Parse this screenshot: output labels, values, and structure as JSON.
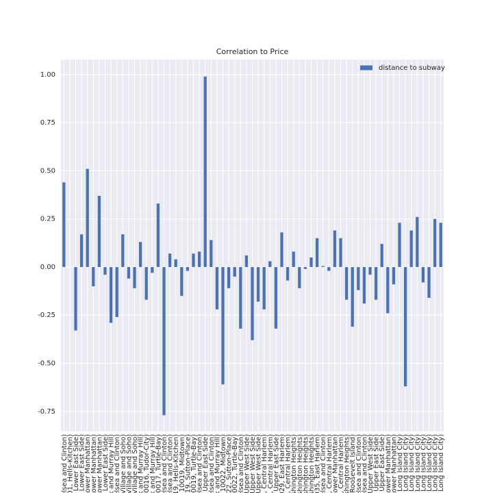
{
  "chart_data": {
    "type": "bar",
    "title": "Correlation to Price",
    "categories": [
      "elsea and Clinton)",
      "001, Hells-Kitchen)",
      "Lower East Side)",
      "Lower East Side)",
      "Lower Manhattan)",
      "Lower Manhattan)",
      "Lower Manhattan)",
      "Lower East Side)",
      "rk and Murray Hill)",
      "elsea and Clinton)",
      "Village and Soho)",
      "Village and Soho)",
      "Village and Soho)",
      "rk and Murray Hill)",
      "10016, Tudor-City)",
      "rk and Murray Hill)",
      "10017, Turtle-Bay)",
      "elsea and Clinton)",
      "elsea and Clinton)",
      "019, Hells-Kitchen)",
      "10019, Midtown)",
      "019, Sutton-Place)",
      "10019, Turtle-Bay)",
      "elsea and Clinton)",
      "Upper East Side)",
      "elsea and Clinton)",
      "rk and Murray Hill)",
      "10022, Midtown)",
      "022, Sutton-Place)",
      "10022, Turtle-Bay)",
      "elsea and Clinton)",
      "Upper West Side)",
      "Upper West Side)",
      "Upper West Side)",
      "6, Central Harlem)",
      "7, Central Harlem)",
      "Upper East Side)",
      "029, East Harlem)",
      "0, Central Harlem)",
      "ashington Heights)",
      "ashington Heights)",
      "ashington Heights)",
      "ashington Heights)",
      "035, East Harlem)",
      "elsea and Clinton)",
      "7, Central Harlem)",
      "Lower Manhattan)",
      "9, Central Harlem)",
      "ashington Heights)",
      "Roosevelt Island)",
      "elsea and Clinton)",
      "elsea and Clinton)",
      "Upper West Side)",
      "Upper East Side)",
      "Upper East Side)",
      "Lower Manhattan)",
      "Lower Manhattan)",
      "Long Island City)",
      "Long Island City)",
      "Long Island City)",
      "Long Island City)",
      "Long Island City)",
      "Long Island City)",
      "Long Island City)",
      "Long Island City)"
    ],
    "series": [
      {
        "name": "distance to subway",
        "color": "#4c72b0",
        "values": [
          0.44,
          0.0,
          -0.33,
          0.17,
          0.51,
          -0.1,
          0.37,
          -0.04,
          -0.29,
          -0.26,
          0.17,
          -0.06,
          -0.11,
          0.13,
          -0.17,
          -0.03,
          0.33,
          -0.77,
          0.07,
          0.04,
          -0.15,
          -0.02,
          0.07,
          0.08,
          0.99,
          0.14,
          -0.22,
          -0.61,
          -0.11,
          -0.05,
          -0.32,
          0.06,
          -0.38,
          -0.18,
          -0.22,
          0.03,
          -0.32,
          0.18,
          -0.07,
          0.08,
          -0.11,
          -0.01,
          0.05,
          0.15,
          0.005,
          -0.02,
          0.19,
          0.15,
          -0.17,
          -0.31,
          -0.12,
          -0.19,
          -0.04,
          -0.17,
          0.12,
          -0.24,
          -0.09,
          0.23,
          -0.62,
          0.19,
          0.26,
          -0.08,
          -0.16,
          0.25,
          0.23
        ]
      }
    ],
    "ylim": [
      -0.854,
      1.078
    ],
    "yticks": [
      -0.75,
      {
        "value": -0.5,
        "label": "-0.50"
      },
      -0.25,
      {
        "value": 0,
        "label": "0.00"
      },
      0.25,
      {
        "value": 0.5,
        "label": "0.50"
      },
      0.75,
      {
        "value": 1,
        "label": "1.00"
      }
    ],
    "grid": true,
    "legend": "upper right"
  }
}
